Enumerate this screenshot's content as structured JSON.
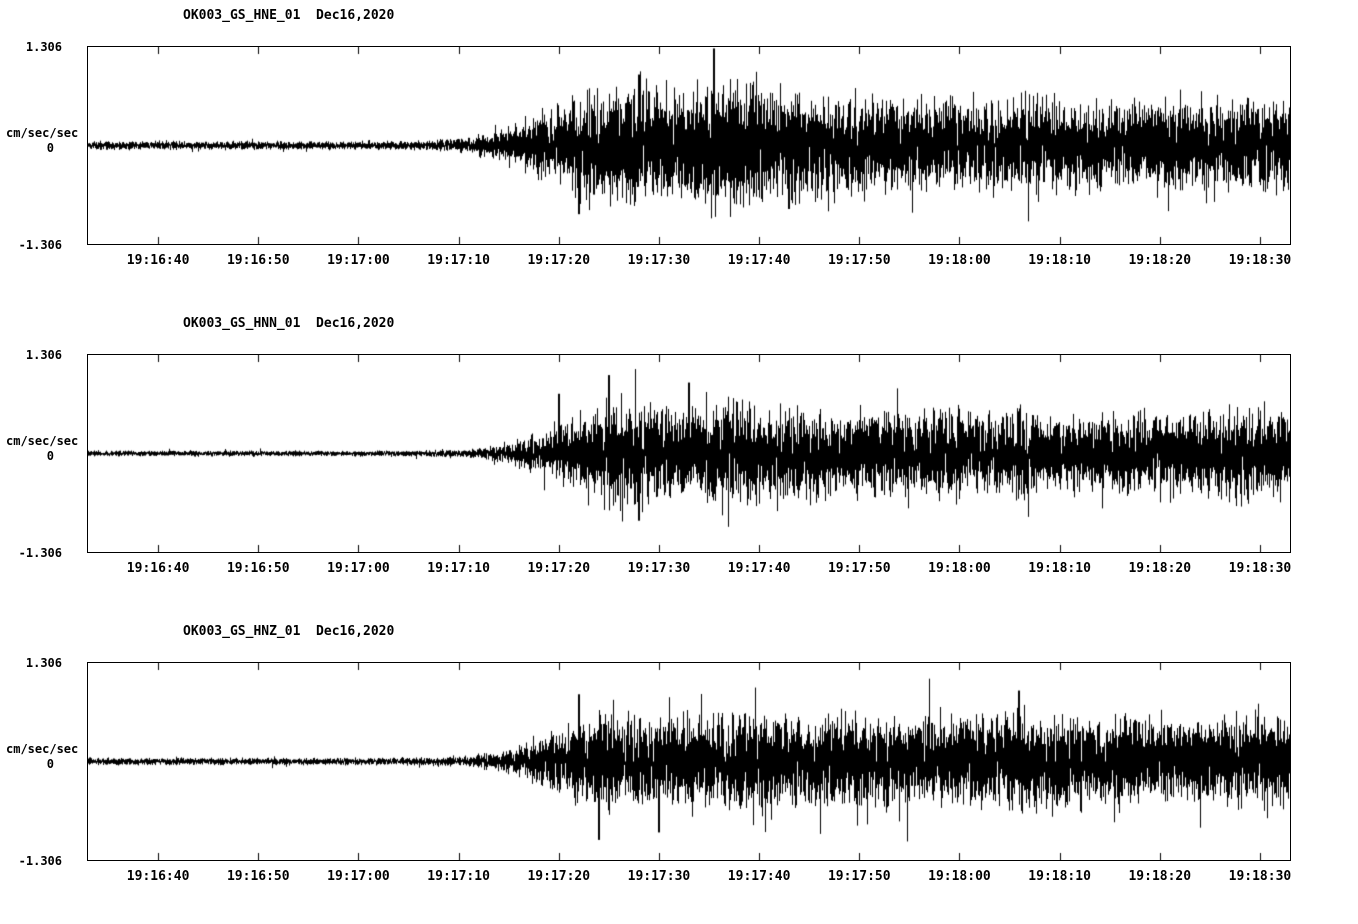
{
  "figure": {
    "y_max_label": "1.306",
    "y_min_label": "-1.306",
    "y_zero_label": "0",
    "y_axis_unit": "cm/sec/sec"
  },
  "chart_data": [
    {
      "type": "line",
      "subtype": "seismogram-waveform",
      "title": "OK003_GS_HNE_01  Dec16,2020",
      "station": "OK003",
      "channel": "GS_HNE_01",
      "date": "Dec16,2020",
      "ylabel": "cm/sec/sec",
      "ylim": [
        -1.306,
        1.306
      ],
      "time_start": "19:16:33",
      "time_end": "19:18:33",
      "duration_s": 120,
      "x_tick_labels": [
        "19:16:40",
        "19:16:50",
        "19:17:00",
        "19:17:10",
        "19:17:20",
        "19:17:30",
        "19:17:40",
        "19:17:50",
        "19:18:00",
        "19:18:10",
        "19:18:20",
        "19:18:30"
      ],
      "x_tick_offsets_s": [
        7,
        17,
        27,
        37,
        47,
        57,
        67,
        77,
        87,
        97,
        107,
        117
      ],
      "noise_floor": 0.055,
      "envelope": [
        [
          0,
          0.055
        ],
        [
          25,
          0.05
        ],
        [
          34,
          0.06
        ],
        [
          38,
          0.1
        ],
        [
          42,
          0.22
        ],
        [
          46,
          0.45
        ],
        [
          50,
          0.68
        ],
        [
          54,
          0.8
        ],
        [
          58,
          0.72
        ],
        [
          62,
          0.78
        ],
        [
          66,
          0.8
        ],
        [
          70,
          0.72
        ],
        [
          74,
          0.62
        ],
        [
          78,
          0.58
        ],
        [
          84,
          0.6
        ],
        [
          90,
          0.55
        ],
        [
          96,
          0.58
        ],
        [
          102,
          0.52
        ],
        [
          108,
          0.56
        ],
        [
          114,
          0.58
        ],
        [
          120,
          0.6
        ]
      ],
      "spikes": [
        [
          62.5,
          1.3
        ],
        [
          49,
          -0.92
        ],
        [
          55,
          0.95
        ],
        [
          70,
          -0.85
        ]
      ]
    },
    {
      "type": "line",
      "subtype": "seismogram-waveform",
      "title": "OK003_GS_HNN_01  Dec16,2020",
      "station": "OK003",
      "channel": "GS_HNN_01",
      "date": "Dec16,2020",
      "ylabel": "cm/sec/sec",
      "ylim": [
        -1.306,
        1.306
      ],
      "time_start": "19:16:33",
      "time_end": "19:18:33",
      "duration_s": 120,
      "x_tick_labels": [
        "19:16:40",
        "19:16:50",
        "19:17:00",
        "19:17:10",
        "19:17:20",
        "19:17:30",
        "19:17:40",
        "19:17:50",
        "19:18:00",
        "19:18:10",
        "19:18:20",
        "19:18:30"
      ],
      "x_tick_offsets_s": [
        7,
        17,
        27,
        37,
        47,
        57,
        67,
        77,
        87,
        97,
        107,
        117
      ],
      "noise_floor": 0.035,
      "envelope": [
        [
          0,
          0.035
        ],
        [
          30,
          0.035
        ],
        [
          38,
          0.05
        ],
        [
          42,
          0.12
        ],
        [
          46,
          0.3
        ],
        [
          50,
          0.55
        ],
        [
          53,
          0.7
        ],
        [
          56,
          0.62
        ],
        [
          60,
          0.58
        ],
        [
          64,
          0.6
        ],
        [
          68,
          0.62
        ],
        [
          72,
          0.58
        ],
        [
          76,
          0.52
        ],
        [
          82,
          0.55
        ],
        [
          88,
          0.5
        ],
        [
          94,
          0.52
        ],
        [
          100,
          0.48
        ],
        [
          106,
          0.5
        ],
        [
          112,
          0.55
        ],
        [
          116,
          0.58
        ],
        [
          120,
          0.55
        ]
      ],
      "spikes": [
        [
          52,
          1.05
        ],
        [
          47,
          0.8
        ],
        [
          55,
          -0.9
        ],
        [
          60,
          0.95
        ]
      ]
    },
    {
      "type": "line",
      "subtype": "seismogram-waveform",
      "title": "OK003_GS_HNZ_01  Dec16,2020",
      "station": "OK003",
      "channel": "GS_HNZ_01",
      "date": "Dec16,2020",
      "ylabel": "cm/sec/sec",
      "ylim": [
        -1.306,
        1.306
      ],
      "time_start": "19:16:33",
      "time_end": "19:18:33",
      "duration_s": 120,
      "x_tick_labels": [
        "19:16:40",
        "19:16:50",
        "19:17:00",
        "19:17:10",
        "19:17:20",
        "19:17:30",
        "19:17:40",
        "19:17:50",
        "19:18:00",
        "19:18:10",
        "19:18:20",
        "19:18:30"
      ],
      "x_tick_offsets_s": [
        7,
        17,
        27,
        37,
        47,
        57,
        67,
        77,
        87,
        97,
        107,
        117
      ],
      "noise_floor": 0.045,
      "envelope": [
        [
          0,
          0.045
        ],
        [
          30,
          0.045
        ],
        [
          38,
          0.06
        ],
        [
          42,
          0.15
        ],
        [
          46,
          0.35
        ],
        [
          50,
          0.58
        ],
        [
          54,
          0.62
        ],
        [
          58,
          0.55
        ],
        [
          62,
          0.58
        ],
        [
          66,
          0.6
        ],
        [
          70,
          0.55
        ],
        [
          76,
          0.58
        ],
        [
          82,
          0.55
        ],
        [
          88,
          0.6
        ],
        [
          92,
          0.62
        ],
        [
          96,
          0.58
        ],
        [
          102,
          0.55
        ],
        [
          108,
          0.52
        ],
        [
          114,
          0.55
        ],
        [
          120,
          0.58
        ]
      ],
      "spikes": [
        [
          49,
          0.9
        ],
        [
          51,
          -1.05
        ],
        [
          57,
          -0.95
        ],
        [
          93,
          0.95
        ]
      ]
    }
  ]
}
